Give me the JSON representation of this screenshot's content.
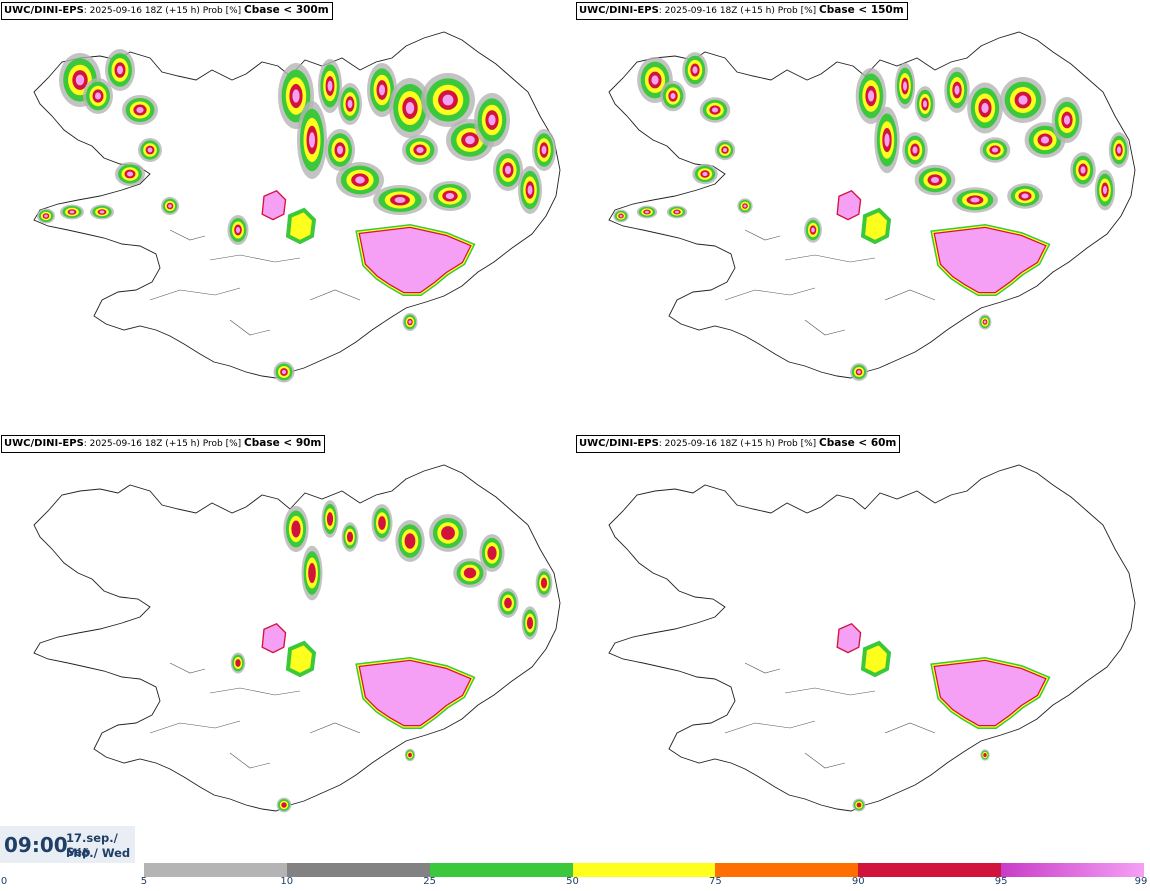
{
  "panels": [
    {
      "model": "UWC/DINI-EPS",
      "run": ": 2025-09-16 18Z (+15 h) Prob [%] ",
      "threshold": "Cbase < 300m"
    },
    {
      "model": "UWC/DINI-EPS",
      "run": ": 2025-09-16 18Z (+15 h) Prob [%] ",
      "threshold": "Cbase < 150m"
    },
    {
      "model": "UWC/DINI-EPS",
      "run": ": 2025-09-16 18Z (+15 h) Prob [%] ",
      "threshold": "Cbase < 90m"
    },
    {
      "model": "UWC/DINI-EPS",
      "run": ": 2025-09-16 18Z (+15 h) Prob [%] ",
      "threshold": "Cbase < 60m"
    }
  ],
  "valid_time": {
    "time": "09:00",
    "date_line1": "17.sep./ Sep",
    "date_line2": "Mið./ Wed"
  },
  "colorbar": {
    "ticks": [
      "0",
      "5",
      "10",
      "25",
      "50",
      "75",
      "90",
      "95",
      "99"
    ],
    "colors": [
      "#ffffff",
      "#b4b4b4",
      "#828282",
      "#3cc83c",
      "#ffff1e",
      "#ff6e00",
      "#d2143c",
      "#c83cc8",
      "#f5a0f5"
    ]
  }
}
